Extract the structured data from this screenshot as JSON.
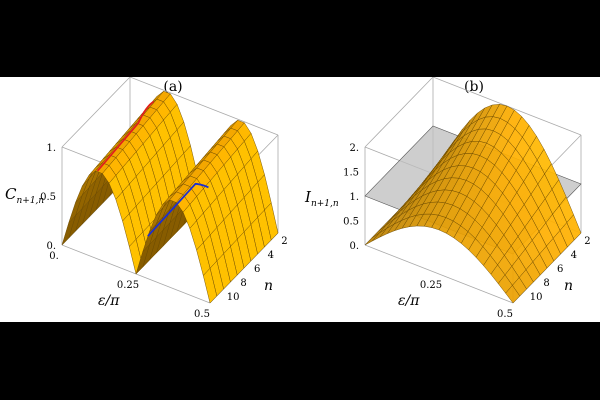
{
  "chart_data": [
    {
      "panel_label": "(a)",
      "type": "surface3d",
      "zlabel_main": "C",
      "zlabel_sub": "n+1,n",
      "xlabel": "ε/π",
      "ylabel": "n",
      "x_ticks": [
        "0.",
        "0.25",
        "0.5"
      ],
      "y_ticks": [
        "2",
        "4",
        "6",
        "8",
        "10"
      ],
      "z_ticks": [
        "0.",
        "0.5",
        "1."
      ],
      "xlim": [
        0,
        0.5
      ],
      "ylim": [
        1,
        10
      ],
      "zlim": [
        0,
        1
      ],
      "surface": "z ≈ |sin(2π·ε/π)|, ridge peaks at ε/π ≈ 0.125 and 0.375 near z = 1",
      "highlight_lines": [
        {
          "color": "#e0201c",
          "path": "red curve along ridge at low ε"
        },
        {
          "color": "#1c2fd0",
          "path": "blue curve along second ridge"
        }
      ],
      "surface_color": "#f5a800"
    },
    {
      "panel_label": "(b)",
      "type": "surface3d",
      "zlabel_main": "I",
      "zlabel_sub": "n+1,n",
      "xlabel": "ε/π",
      "ylabel": "n",
      "x_ticks": [
        "0.",
        "0.25",
        "0.5"
      ],
      "y_ticks": [
        "2",
        "4",
        "6",
        "8",
        "10"
      ],
      "z_ticks": [
        "0.",
        "0.5",
        "1.",
        "1.5",
        "2."
      ],
      "xlim": [
        0,
        0.5
      ],
      "ylim": [
        1,
        10
      ],
      "zlim": [
        0,
        2
      ],
      "surface": "single hump, peak ≈ 2 at ε/π ≈ 0.25, decreasing with n",
      "reference_plane_z": 1.0,
      "surface_color": "#f5a800"
    }
  ]
}
